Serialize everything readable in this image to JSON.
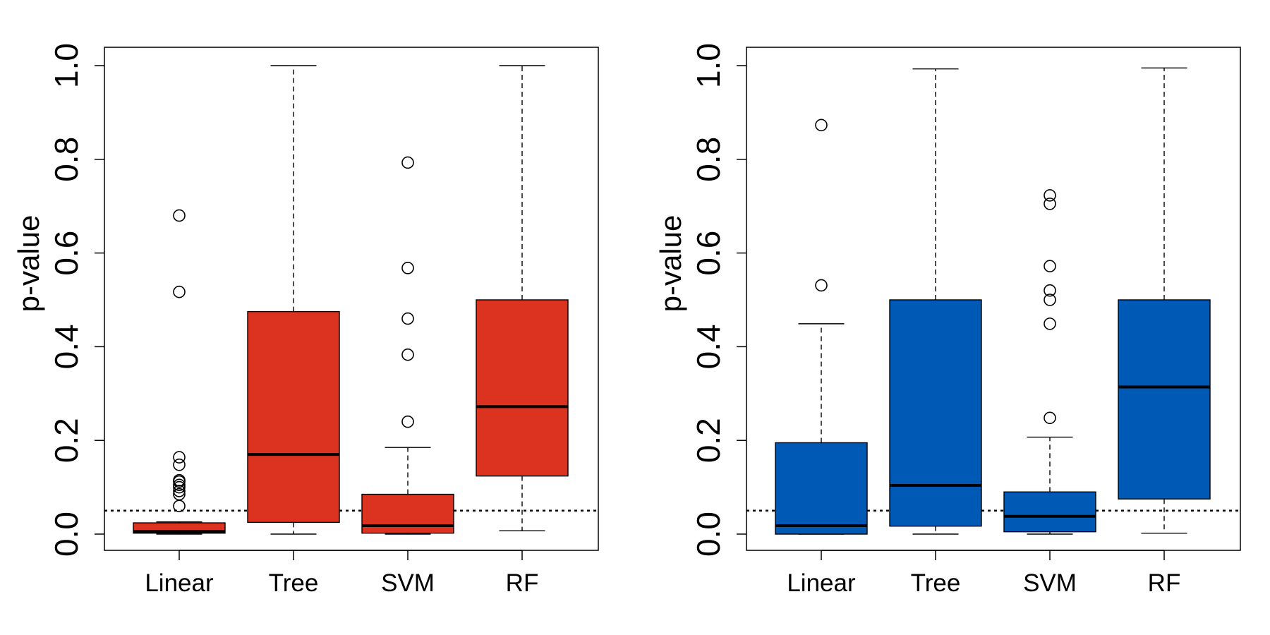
{
  "chart_data": [
    {
      "type": "boxplot",
      "title": "",
      "xlabel": "",
      "ylabel": "p-value",
      "ylim": [
        0,
        1
      ],
      "yticks": [
        "0.0",
        "0.2",
        "0.4",
        "0.6",
        "0.8",
        "1.0"
      ],
      "reference_line": 0.05,
      "fill_color": "#dc3220",
      "categories": [
        "Linear",
        "Tree",
        "SVM",
        "RF"
      ],
      "boxes": [
        {
          "name": "Linear",
          "whisker_low": 0.0,
          "q1": 0.002,
          "median": 0.006,
          "q3": 0.024,
          "whisker_high": 0.026,
          "outliers": [
            0.68,
            0.517,
            0.164,
            0.148,
            0.115,
            0.112,
            0.105,
            0.1,
            0.092,
            0.085,
            0.06
          ]
        },
        {
          "name": "Tree",
          "whisker_low": 0.0,
          "q1": 0.025,
          "median": 0.17,
          "q3": 0.475,
          "whisker_high": 1.0,
          "outliers": []
        },
        {
          "name": "SVM",
          "whisker_low": 0.0,
          "q1": 0.002,
          "median": 0.018,
          "q3": 0.085,
          "whisker_high": 0.185,
          "outliers": [
            0.793,
            0.568,
            0.46,
            0.383,
            0.24
          ]
        },
        {
          "name": "RF",
          "whisker_low": 0.007,
          "q1": 0.124,
          "median": 0.272,
          "q3": 0.5,
          "whisker_high": 1.0,
          "outliers": []
        }
      ]
    },
    {
      "type": "boxplot",
      "title": "",
      "xlabel": "",
      "ylabel": "p-value",
      "ylim": [
        0,
        1
      ],
      "yticks": [
        "0.0",
        "0.2",
        "0.4",
        "0.6",
        "0.8",
        "1.0"
      ],
      "reference_line": 0.05,
      "fill_color": "#005ab5",
      "categories": [
        "Linear",
        "Tree",
        "SVM",
        "RF"
      ],
      "boxes": [
        {
          "name": "Linear",
          "whisker_low": 0.0,
          "q1": 0.0,
          "median": 0.018,
          "q3": 0.195,
          "whisker_high": 0.449,
          "outliers": [
            0.873,
            0.531
          ]
        },
        {
          "name": "Tree",
          "whisker_low": 0.0,
          "q1": 0.017,
          "median": 0.104,
          "q3": 0.5,
          "whisker_high": 0.993,
          "outliers": []
        },
        {
          "name": "SVM",
          "whisker_low": 0.0,
          "q1": 0.005,
          "median": 0.038,
          "q3": 0.09,
          "whisker_high": 0.207,
          "outliers": [
            0.723,
            0.705,
            0.572,
            0.52,
            0.5,
            0.449,
            0.248
          ]
        },
        {
          "name": "RF",
          "whisker_low": 0.002,
          "q1": 0.075,
          "median": 0.314,
          "q3": 0.5,
          "whisker_high": 0.995,
          "outliers": []
        }
      ]
    }
  ]
}
